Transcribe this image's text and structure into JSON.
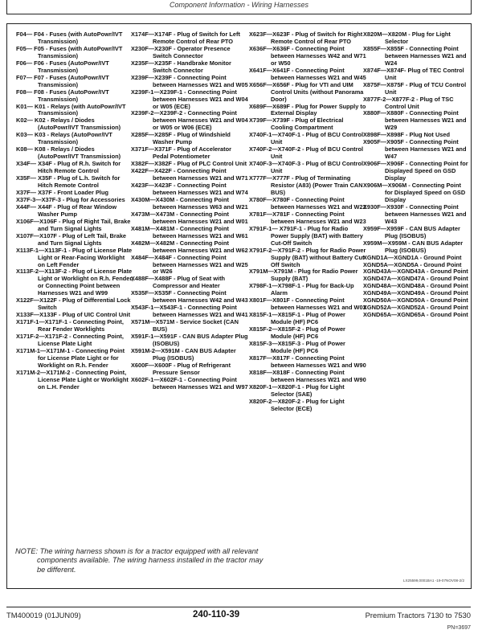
{
  "header": {
    "title": "Component Information - Wiring Harnesses"
  },
  "columns": [
    [
      "F04— F04 - Fuses (with AutoPowr/IVT Transmission)",
      "F05— F05 - Fuses (with AutoPowr/IVT Transmission)",
      "F06— F06 - Fuses (AutoPowr/IVT Transmission)",
      "F07— F07 - Fuses (AutoPowr/IVT Transmission)",
      "F08— F08 - Fuses (AutoPowr/IVT Transmission)",
      "K01— K01 - Relays (with AutoPowr/IVT Transmission)",
      "K02— K02 - Relays / Diodes (AutoPowr/IVT Transmission)",
      "K03— K03 - Relays (AutoPowr/IVT Transmission)",
      "K08— K08 - Relays / Diodes (AutoPowr/IVT Transmission)",
      "X34F— X34F - Plug of R.h. Switch for Hitch Remote Control",
      "X35F— X35F - Plug of L.h. Switch for Hitch Remote Control",
      "X37F— X37F - Front Loader Plug",
      "X37F-3—X37F-3 - Plug for Accessories",
      "X44F— X44F - Plug of Rear Window Washer Pump",
      "X106F—X106F - Plug of Right Tail, Brake and Turn Signal Lights",
      "X107F—X107F - Plug of Left Tail, Brake and Turn Signal Lights",
      "X113F-1—X113F-1 - Plug of License Plate Light or Rear-Facing Worklight on Left Fender",
      "X113F-2—X113F-2 - Plug of License Plate Light or Worklight on R.h. Fender, or Connecting Point between Harnesses W21 and W99",
      "X122F—X122F - Plug of Differential Lock Switch",
      "X133F—X133F - Plug of UIC Control Unit",
      "X171F-1—X171F-1 - Connecting Point, Rear Fender Worklights",
      "X171F-2—X171F-2 - Connecting Point, License Plate Light",
      "X171M-1—X171M-1 - Connecting Point for License Plate Light or for Worklight on R.h. Fender",
      "X171M-2—X171M-2 - Connecting Point, License Plate Light or Worklight on L.H. Fender"
    ],
    [
      "X174F—X174F - Plug of Switch for Left Remote Control of Rear PTO",
      "X230F—X230F - Operator Presence Switch Connector",
      "X235F—X235F - Handbrake Monitor Switch Connector",
      "X239F—X239F - Connecting Point between Harnesses W21 and W05",
      "X239F-1—X239F-1 - Connecting Point between Harnesses W21 and W04 or W05 (ECE)",
      "X239F-2—X239F-2 - Connecting Point between Harnesses W21 and W04 or W05 or W06 (ECE)",
      "X285F—X285F - Plug of Windshield Washer Pump",
      "X371F—X371F - Plug of Accelerator Pedal Potentiometer",
      "X382F—X382F - Plug of PLC Control Unit",
      "X422F—X422F - Connecting Point between Harnesses W21 and W71",
      "X423F—X423F - Connecting Point between Harnesses W21 and W74",
      "X430M—X430M - Connecting Point between Harnesses W63 and W21",
      "X473M—X473M - Connecting Point between Harnesses W21 and W01",
      "X481M—X481M - Connecting Point between Harnesses W21 and W61",
      "X482M—X482M - Connecting Point between Harnesses W21 and W62",
      "X484F—X484F - Connecting Point between Harnesses W21 and W25 or W26",
      "X488F—X488F - Plug of Seat with Compressor and Heater",
      "X535F—X535F - Connecting Point between Harnesses W42 and W43",
      "X543F-1—X543F-1 - Connecting Point between Harnesses W21 and W41",
      "X571M—X571M - Service Socket (CAN BUS)",
      "X591F-1—X591F - CAN BUS Adapter Plug (ISOBUS)",
      "X591M-2—X591M - CAN BUS Adapter Plug (ISOBUS)",
      "X600F—X600F - Plug of Refrigerant Pressure Sensor",
      "X602F-1—X602F-1 - Connecting Point between Harnesses W21 and W97"
    ],
    [
      "X623F—X623F - Plug of Switch for Right Remote Control of Rear PTO",
      "X636F—X636F - Connecting Point between Harnesses W42 and W71 or W50",
      "X641F—X641F - Connecting Point between Harnesses W21 and W45",
      "X656F—X656F - Plug for VTI and UIM Control Units (without Panorama Door)",
      "X689F—X689F - Plug for Power Supply to External Display",
      "X739F—X739F - Plug of Electrical Cooling Compartment",
      "X740F-1—X740F-1 - Plug of BCU Control Unit",
      "X740F-2—X740F-2 - Plug of BCU Control Unit",
      "X740F-3—X740F-3 - Plug of BCU Control Unit",
      "X777F—X777F - Plug of Terminating Resistor (A83) (Power Train CAN BUS)",
      "X780F—X780F - Connecting Point between Harnesses W21 and W22",
      "X781F—X781F - Connecting Point between Harnesses W21 and W23",
      "X791F-1— X791F-1 - Plug for Radio Power Supply (BAT) with Battery Cut-Off Switch",
      "X791F-2—X791F-2 - Plug for Radio Power Supply (BAT) without Battery Cut-Off Switch",
      "X791M—X791M - Plug for Radio Power Supply (BAT)",
      "X798F-1—X798F-1 - Plug for Back-Up Alarm",
      "X801F—X801F - Connecting Point between Harnesses W21 and W03",
      "X815F-1—X815F-1 - Plug of Power Module (HF) PC6",
      "X815F-2—X815F-2 - Plug of Power Module (HF) PC6",
      "X815F-3—X815F-3 - Plug of Power Module (HF) PC6",
      "X817F—X817F - Connecting Point between Harnesses W21 and W90",
      "X818F—X818F - Connecting Point between Harnesses W21 and W90",
      "X820F-1—X820F-1 - Plug for Light Selector (SAE)",
      "X820F-2—X820F-2 - Plug for Light Selector (ECE)"
    ],
    [
      "X820M—X820M - Plug for Light Selector",
      "X855F—X855F - Connecting Point between Harnesses W21 and W24",
      "X874F—X874F- Plug of TEC Control Unit",
      "X875F—X875F - Plug of TCU Control Unit",
      "X877F-2—X877F-2 - Plug of TSC Control Unit",
      "X880F—X880F - Connecting Point between Harnesses W21 and W29",
      "X898F—X898F - Plug Not Used",
      "X905F—X905F - Connecting Point between Harnesses W21 and W47",
      "X906F—X906F - Connecting Point for Displayed Speed on GSD Display",
      "X906M—X906M - Connecting Point for Displayed Speed on GSD Display",
      "X930F—X930F - Connecting Point between Harnesses W21 and W43",
      "X959F—X959F - CAN BUS Adapter Plug (ISOBUS)",
      "X959M—X959M - CAN BUS Adapter Plug (ISOBUS)",
      "XGND1A—XGND1A - Ground Point",
      "XGND5A—XGND5A - Ground Point",
      "XGND43A—XGND43A - Ground Point",
      "XGND47A—XGND47A - Ground Point",
      "XGND48A—XGND48A - Ground Point",
      "XGND49A—XGND49A - Ground Point",
      "XGND50A—XGND50A - Ground Point",
      "XGND52A—XGND52A - Ground Point",
      "XGND65A—XGND65A - Ground Point"
    ]
  ],
  "note": "NOTE: The wiring harness shown is for a tractor equipped with all relevant components available. The wiring harness installed in the tractor may be different.",
  "reference": "LX25599,0001BA1 -19-07NOV08-2/2",
  "footer": {
    "manual": "TM400019 (01JUN09)",
    "page": "240-110-39",
    "product": "Premium Tractors 7130 to 7530",
    "pn": "PN=3697"
  }
}
